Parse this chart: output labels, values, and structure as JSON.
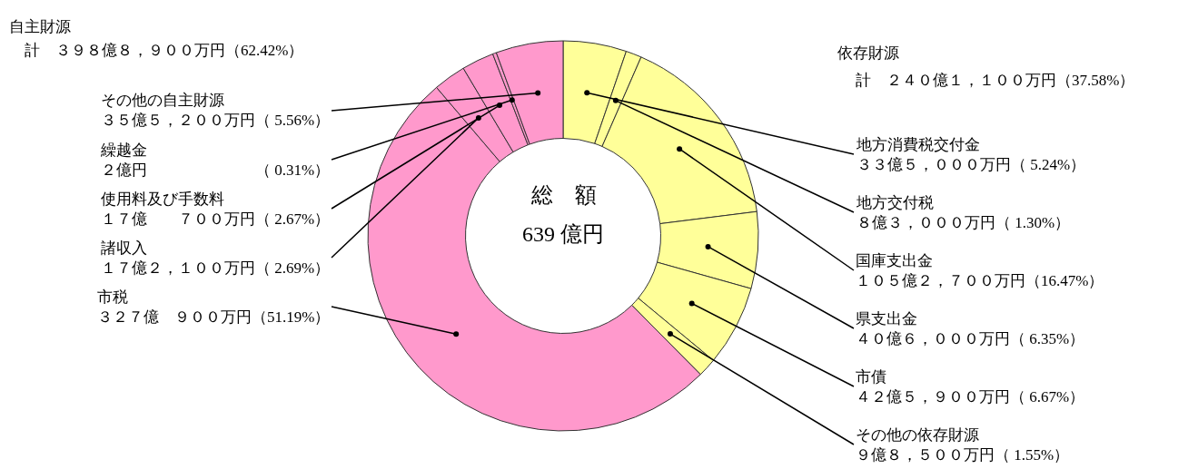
{
  "chart_data": {
    "type": "donut",
    "categories": [
      "地方消費税交付金",
      "地方交付税",
      "国庫支出金",
      "県支出金",
      "市債",
      "その他の依存財源",
      "市税",
      "諸収入",
      "使用料及び手数料",
      "繰越金",
      "その他の自主財源"
    ],
    "values": [
      5.24,
      1.3,
      16.47,
      6.35,
      6.67,
      1.55,
      51.19,
      2.69,
      2.67,
      0.31,
      5.56
    ],
    "colors": [
      "#ffff99",
      "#ffff99",
      "#ffff99",
      "#ffff99",
      "#ffff99",
      "#ffff99",
      "#ff99cc",
      "#ff99cc",
      "#ff99cc",
      "#ff99cc",
      "#ff99cc"
    ],
    "value_labels": [
      "３３億５，０００万円（ 5.24%）",
      "８億３，０００万円（ 1.30%）",
      "１０５億２，７００万円（16.47%）",
      "４０億６，０００万円（ 6.35%）",
      "４２億５，９００万円（ 6.67%）",
      "９億８，５００万円（ 1.55%）",
      "３２７億　９００万円（51.19%）",
      "１７億２，１００万円（ 2.69%）",
      "１７億　　７００万円（ 2.67%）",
      "２億円　　　　　　　（ 0.31%）",
      "３５億５，２００万円（ 5.56%）"
    ],
    "annotations": [
      "自主財源",
      "計　３９８億８，９００万円（62.42%）",
      "依存財源",
      "計　２４０億１，１００万円（37.58%）",
      "総　額",
      "639 億円"
    ]
  }
}
